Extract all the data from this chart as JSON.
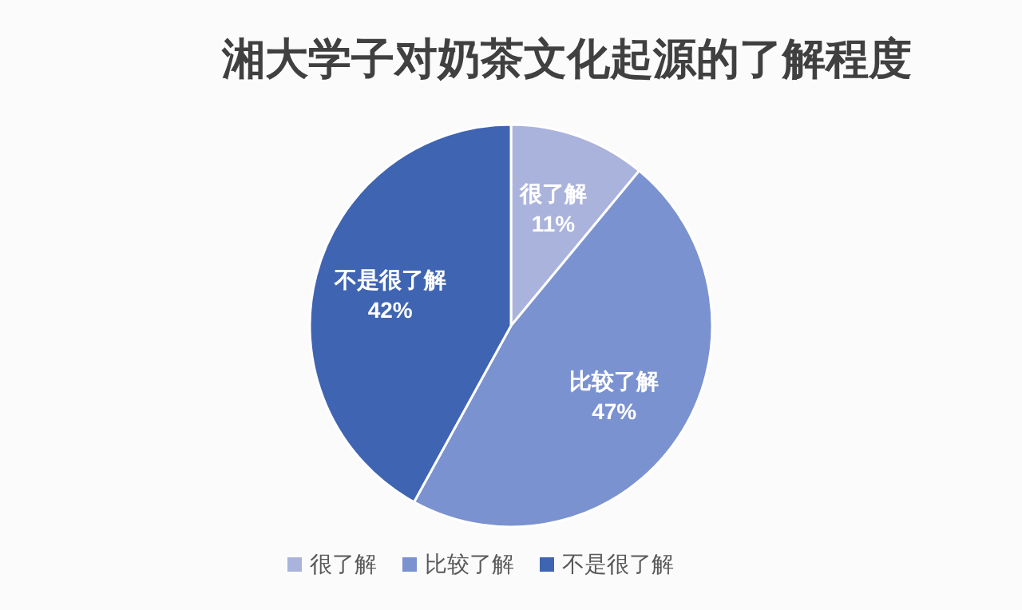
{
  "chart_data": {
    "type": "pie",
    "title": "湘大学子对奶茶文化起源的了解程度",
    "categories": [
      "很了解",
      "比较了解",
      "不是很了解"
    ],
    "values": [
      11,
      47,
      42
    ],
    "value_labels": [
      "11%",
      "47%",
      "42%"
    ],
    "colors": [
      "#aab3dc",
      "#7b92d0",
      "#3f64b1"
    ],
    "legend": "bottom"
  }
}
